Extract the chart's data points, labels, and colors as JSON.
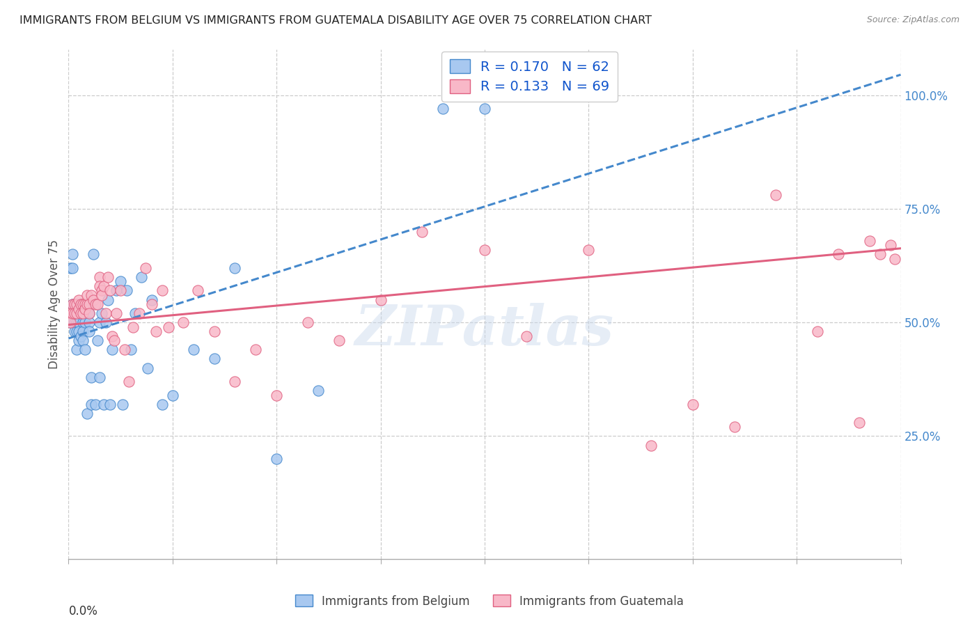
{
  "title": "IMMIGRANTS FROM BELGIUM VS IMMIGRANTS FROM GUATEMALA DISABILITY AGE OVER 75 CORRELATION CHART",
  "source": "Source: ZipAtlas.com",
  "ylabel": "Disability Age Over 75",
  "ylabel_right_ticks": [
    "25.0%",
    "50.0%",
    "75.0%",
    "100.0%"
  ],
  "ylabel_right_vals": [
    0.25,
    0.5,
    0.75,
    1.0
  ],
  "R_belgium": 0.17,
  "N_belgium": 62,
  "R_guatemala": 0.133,
  "N_guatemala": 69,
  "color_belgium": "#A8C8F0",
  "color_guatemala": "#F8B8C8",
  "trendline_belgium": "#4488CC",
  "trendline_guatemala": "#E06080",
  "watermark": "ZIPatlas",
  "xlim": [
    0.0,
    0.4
  ],
  "ylim": [
    -0.02,
    1.1
  ],
  "trendline_bel_intercept": 0.465,
  "trendline_bel_slope": 1.45,
  "trendline_gua_intercept": 0.495,
  "trendline_gua_slope": 0.42,
  "belgium_x": [
    0.001,
    0.001,
    0.002,
    0.002,
    0.002,
    0.003,
    0.003,
    0.003,
    0.003,
    0.004,
    0.004,
    0.004,
    0.005,
    0.005,
    0.005,
    0.005,
    0.005,
    0.006,
    0.006,
    0.006,
    0.007,
    0.007,
    0.007,
    0.008,
    0.008,
    0.008,
    0.009,
    0.009,
    0.01,
    0.01,
    0.01,
    0.011,
    0.011,
    0.012,
    0.013,
    0.014,
    0.015,
    0.015,
    0.016,
    0.017,
    0.018,
    0.019,
    0.02,
    0.021,
    0.023,
    0.025,
    0.026,
    0.028,
    0.03,
    0.032,
    0.035,
    0.038,
    0.04,
    0.045,
    0.05,
    0.06,
    0.07,
    0.08,
    0.1,
    0.12,
    0.18,
    0.2
  ],
  "belgium_y": [
    0.5,
    0.62,
    0.62,
    0.65,
    0.54,
    0.52,
    0.52,
    0.5,
    0.48,
    0.48,
    0.5,
    0.44,
    0.52,
    0.51,
    0.5,
    0.48,
    0.46,
    0.54,
    0.52,
    0.47,
    0.5,
    0.48,
    0.46,
    0.54,
    0.5,
    0.44,
    0.54,
    0.3,
    0.52,
    0.5,
    0.48,
    0.38,
    0.32,
    0.65,
    0.32,
    0.46,
    0.5,
    0.38,
    0.52,
    0.32,
    0.5,
    0.55,
    0.32,
    0.44,
    0.57,
    0.59,
    0.32,
    0.57,
    0.44,
    0.52,
    0.6,
    0.4,
    0.55,
    0.32,
    0.34,
    0.44,
    0.42,
    0.62,
    0.2,
    0.35,
    0.97,
    0.97
  ],
  "guatemala_x": [
    0.001,
    0.001,
    0.002,
    0.002,
    0.003,
    0.003,
    0.004,
    0.004,
    0.005,
    0.005,
    0.006,
    0.006,
    0.007,
    0.007,
    0.008,
    0.008,
    0.009,
    0.009,
    0.01,
    0.01,
    0.011,
    0.012,
    0.013,
    0.014,
    0.015,
    0.015,
    0.016,
    0.016,
    0.017,
    0.018,
    0.019,
    0.02,
    0.021,
    0.022,
    0.023,
    0.025,
    0.027,
    0.029,
    0.031,
    0.034,
    0.037,
    0.04,
    0.042,
    0.045,
    0.048,
    0.055,
    0.062,
    0.07,
    0.08,
    0.09,
    0.1,
    0.115,
    0.13,
    0.15,
    0.17,
    0.2,
    0.22,
    0.25,
    0.28,
    0.3,
    0.32,
    0.34,
    0.36,
    0.37,
    0.38,
    0.385,
    0.39,
    0.395,
    0.397
  ],
  "guatemala_y": [
    0.52,
    0.5,
    0.54,
    0.52,
    0.54,
    0.52,
    0.54,
    0.52,
    0.55,
    0.53,
    0.54,
    0.52,
    0.54,
    0.52,
    0.54,
    0.53,
    0.54,
    0.56,
    0.54,
    0.52,
    0.56,
    0.55,
    0.54,
    0.54,
    0.6,
    0.58,
    0.57,
    0.56,
    0.58,
    0.52,
    0.6,
    0.57,
    0.47,
    0.46,
    0.52,
    0.57,
    0.44,
    0.37,
    0.49,
    0.52,
    0.62,
    0.54,
    0.48,
    0.57,
    0.49,
    0.5,
    0.57,
    0.48,
    0.37,
    0.44,
    0.34,
    0.5,
    0.46,
    0.55,
    0.7,
    0.66,
    0.47,
    0.66,
    0.23,
    0.32,
    0.27,
    0.78,
    0.48,
    0.65,
    0.28,
    0.68,
    0.65,
    0.67,
    0.64
  ]
}
